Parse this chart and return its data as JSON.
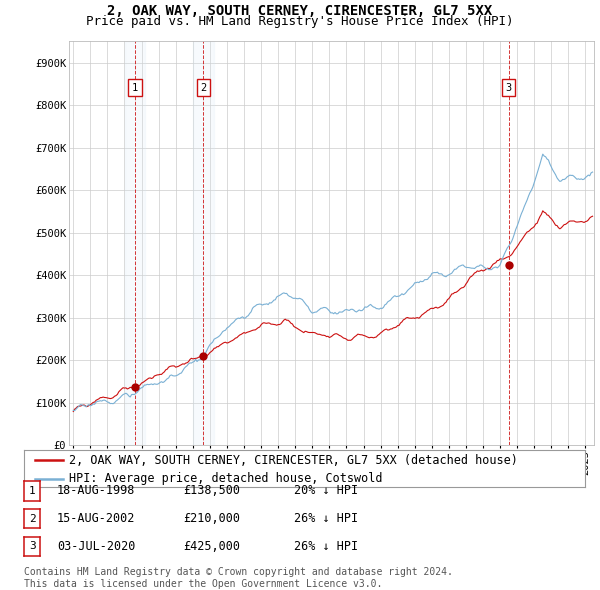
{
  "title": "2, OAK WAY, SOUTH CERNEY, CIRENCESTER, GL7 5XX",
  "subtitle": "Price paid vs. HM Land Registry's House Price Index (HPI)",
  "background_color": "#ffffff",
  "plot_bg_color": "#ffffff",
  "grid_color": "#cccccc",
  "hpi_line_color": "#7ab0d4",
  "hpi_shade_color": "#d8e8f5",
  "price_line_color": "#cc1111",
  "sale_marker_color": "#aa0000",
  "sale_vline_color": "#cc1111",
  "ylim": [
    0,
    950000
  ],
  "yticks": [
    0,
    100000,
    200000,
    300000,
    400000,
    500000,
    600000,
    700000,
    800000,
    900000
  ],
  "ytick_labels": [
    "£0",
    "£100K",
    "£200K",
    "£300K",
    "£400K",
    "£500K",
    "£600K",
    "£700K",
    "£800K",
    "£900K"
  ],
  "xlim_start": 1994.75,
  "xlim_end": 2025.5,
  "sales": [
    {
      "label": 1,
      "year": 1998.62,
      "price": 138500
    },
    {
      "label": 2,
      "year": 2002.62,
      "price": 210000
    },
    {
      "label": 3,
      "year": 2020.5,
      "price": 425000
    }
  ],
  "legend_entries": [
    "2, OAK WAY, SOUTH CERNEY, CIRENCESTER, GL7 5XX (detached house)",
    "HPI: Average price, detached house, Cotswold"
  ],
  "table_rows": [
    {
      "num": 1,
      "date": "18-AUG-1998",
      "price": "£138,500",
      "pct": "20% ↓ HPI"
    },
    {
      "num": 2,
      "date": "15-AUG-2002",
      "price": "£210,000",
      "pct": "26% ↓ HPI"
    },
    {
      "num": 3,
      "date": "03-JUL-2020",
      "price": "£425,000",
      "pct": "26% ↓ HPI"
    }
  ],
  "footer": "Contains HM Land Registry data © Crown copyright and database right 2024.\nThis data is licensed under the Open Government Licence v3.0.",
  "title_fontsize": 10,
  "subtitle_fontsize": 9,
  "tick_fontsize": 7.5,
  "legend_fontsize": 8.5,
  "table_fontsize": 8.5,
  "footer_fontsize": 7
}
